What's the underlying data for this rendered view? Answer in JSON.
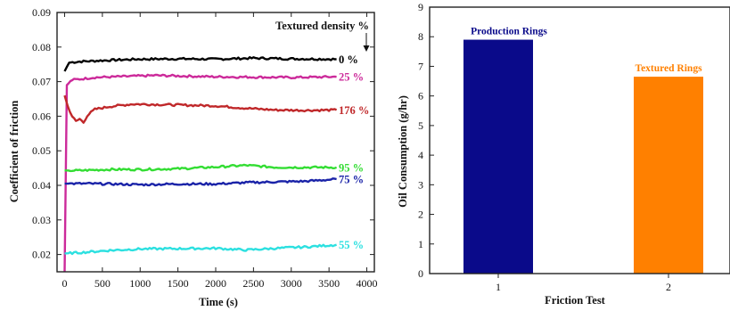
{
  "chart_data": [
    {
      "type": "line",
      "xlabel": "Time (s)",
      "ylabel": "Coefficient of friction",
      "xlim": [
        -100,
        4100
      ],
      "ylim": [
        0.015,
        0.09
      ],
      "xticks": [
        0,
        500,
        1000,
        1500,
        2000,
        2500,
        3000,
        3500,
        4000
      ],
      "yticks": [
        0.02,
        0.03,
        0.04,
        0.05,
        0.06,
        0.07,
        0.08,
        0.09
      ],
      "xtick_labels": [
        "0",
        "500",
        "1000",
        "1500",
        "2000",
        "2500",
        "3000",
        "3500",
        "4000"
      ],
      "ytick_labels": [
        "0.02",
        "0.03",
        "0.04",
        "0.05",
        "0.06",
        "0.07",
        "0.08",
        "0.09"
      ],
      "legend_title": "Textured density %",
      "series": [
        {
          "name": "0 %",
          "color": "#000000",
          "x": [
            0,
            60,
            200,
            600,
            1000,
            1500,
            2000,
            2500,
            3000,
            3600
          ],
          "y": [
            0.073,
            0.0755,
            0.0758,
            0.0762,
            0.0765,
            0.0766,
            0.0765,
            0.0768,
            0.0766,
            0.0765
          ]
        },
        {
          "name": "25 %",
          "color": "#cc2a9a",
          "x": [
            0,
            30,
            100,
            400,
            800,
            1200,
            1600,
            2000,
            2500,
            3000,
            3600
          ],
          "y": [
            0.015,
            0.069,
            0.0705,
            0.0712,
            0.0715,
            0.0718,
            0.0716,
            0.0714,
            0.0713,
            0.0712,
            0.0714
          ]
        },
        {
          "name": "176 %",
          "color": "#c0282a",
          "x": [
            0,
            40,
            100,
            150,
            200,
            250,
            300,
            400,
            600,
            900,
            1200,
            1600,
            2000,
            2400,
            2800,
            3200,
            3600
          ],
          "y": [
            0.066,
            0.063,
            0.06,
            0.0585,
            0.0592,
            0.0582,
            0.0602,
            0.062,
            0.0628,
            0.0635,
            0.0634,
            0.0632,
            0.063,
            0.0623,
            0.0618,
            0.0617,
            0.0618
          ]
        },
        {
          "name": "95 %",
          "color": "#33dd33",
          "x": [
            0,
            200,
            600,
            1000,
            1500,
            2000,
            2400,
            2800,
            3200,
            3600
          ],
          "y": [
            0.0443,
            0.0443,
            0.0446,
            0.0446,
            0.0448,
            0.0453,
            0.0458,
            0.0452,
            0.0452,
            0.0452
          ]
        },
        {
          "name": "75 %",
          "color": "#1a23a8",
          "x": [
            0,
            300,
            600,
            1000,
            1500,
            2000,
            2400,
            2800,
            3200,
            3600
          ],
          "y": [
            0.0405,
            0.0405,
            0.0404,
            0.0402,
            0.0404,
            0.0404,
            0.0408,
            0.041,
            0.0412,
            0.0418
          ]
        },
        {
          "name": "55 %",
          "color": "#2ce0e0",
          "x": [
            0,
            300,
            600,
            1000,
            1500,
            2000,
            2400,
            2800,
            3200,
            3600
          ],
          "y": [
            0.0203,
            0.0207,
            0.0212,
            0.0216,
            0.0217,
            0.0218,
            0.0213,
            0.0218,
            0.0222,
            0.0228
          ]
        }
      ]
    },
    {
      "type": "bar",
      "xlabel": "Friction Test",
      "ylabel": "Oil Consumption (g/hr)",
      "ylim": [
        0,
        9
      ],
      "yticks": [
        0,
        1,
        2,
        3,
        4,
        5,
        6,
        7,
        8,
        9
      ],
      "ytick_labels": [
        "0",
        "1",
        "2",
        "3",
        "4",
        "5",
        "6",
        "7",
        "8",
        "9"
      ],
      "categories": [
        "1",
        "2"
      ],
      "values": [
        7.9,
        6.65
      ],
      "bar_labels": [
        "Production Rings",
        "Textured Rings"
      ],
      "colors": [
        "#0a0a8a",
        "#ff8000"
      ]
    }
  ]
}
